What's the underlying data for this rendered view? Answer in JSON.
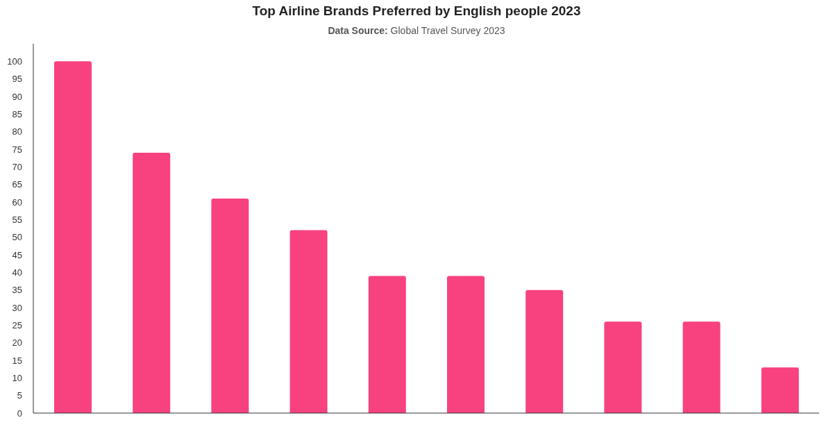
{
  "chart_data": {
    "type": "bar",
    "title": "Top Airline Brands Preferred by English people 2023",
    "subtitle": "Data Source: Global Travel Survey 2023",
    "categories": [
      null,
      null,
      null,
      null,
      null,
      null,
      null,
      null,
      null,
      null
    ],
    "values": [
      100,
      74,
      61,
      52,
      39,
      39,
      35,
      26,
      26,
      13
    ],
    "color": "#f7427f",
    "ylim": [
      0,
      105
    ],
    "yticks": [
      0,
      5,
      10,
      15,
      20,
      25,
      30,
      35,
      40,
      45,
      50,
      55,
      60,
      65,
      70,
      75,
      80,
      85,
      90,
      95,
      100
    ],
    "tick_labels": "y"
  }
}
